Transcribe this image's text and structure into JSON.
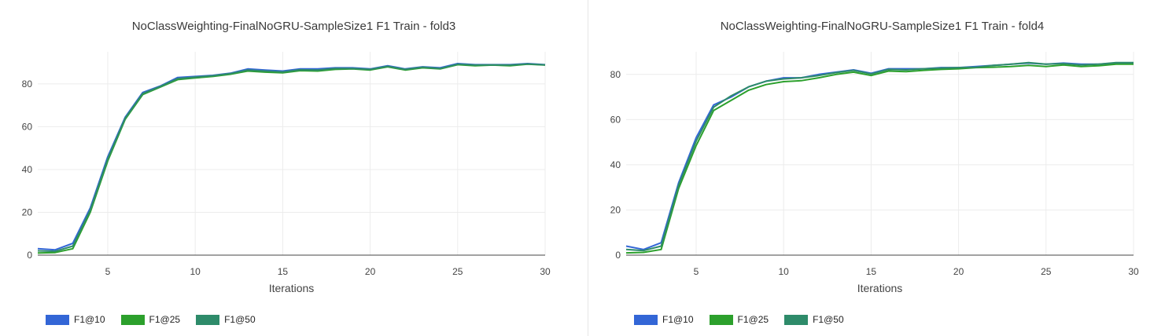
{
  "chart_data": [
    {
      "type": "line",
      "title": "NoClassWeighting-FinalNoGRU-SampleSize1 F1 Train - fold3",
      "xlabel": "Iterations",
      "ylabel": "",
      "xlim": [
        1,
        30
      ],
      "ylim": [
        0,
        95
      ],
      "xticks": [
        5,
        10,
        15,
        20,
        25,
        30
      ],
      "yticks": [
        0,
        20,
        40,
        60,
        80
      ],
      "grid": true,
      "legend": "bottom-left",
      "x": [
        1,
        2,
        3,
        4,
        5,
        6,
        7,
        8,
        9,
        10,
        11,
        12,
        13,
        14,
        15,
        16,
        17,
        18,
        19,
        20,
        21,
        22,
        23,
        24,
        25,
        26,
        27,
        28,
        29,
        30
      ],
      "series": [
        {
          "name": "F1@10",
          "color": "#3366d6",
          "values": [
            3.0,
            2.5,
            5.5,
            22.0,
            46.0,
            64.5,
            76.0,
            79.0,
            83.0,
            83.5,
            84.0,
            85.0,
            87.0,
            86.5,
            86.0,
            87.0,
            87.0,
            87.5,
            87.5,
            87.0,
            88.5,
            87.0,
            88.0,
            87.5,
            89.5,
            89.0,
            89.0,
            89.0,
            89.5,
            89.0
          ]
        },
        {
          "name": "F1@25",
          "color": "#2ca02c",
          "values": [
            1.0,
            1.2,
            3.0,
            20.0,
            44.0,
            63.5,
            75.0,
            78.5,
            82.0,
            82.8,
            83.5,
            84.5,
            86.0,
            85.5,
            85.2,
            86.2,
            86.0,
            86.8,
            87.0,
            86.5,
            88.0,
            86.5,
            87.5,
            87.0,
            89.0,
            88.5,
            88.8,
            88.5,
            89.2,
            88.8
          ]
        },
        {
          "name": "F1@50",
          "color": "#2e8b6a",
          "values": [
            2.0,
            1.8,
            4.2,
            21.0,
            45.0,
            64.0,
            75.5,
            78.8,
            82.5,
            83.2,
            83.8,
            84.8,
            86.5,
            86.0,
            85.6,
            86.6,
            86.5,
            87.2,
            87.2,
            86.8,
            88.2,
            86.8,
            87.8,
            87.2,
            89.2,
            88.8,
            88.9,
            88.8,
            89.3,
            88.9
          ]
        }
      ]
    },
    {
      "type": "line",
      "title": "NoClassWeighting-FinalNoGRU-SampleSize1 F1 Train - fold4",
      "xlabel": "Iterations",
      "ylabel": "",
      "xlim": [
        1,
        30
      ],
      "ylim": [
        0,
        90
      ],
      "xticks": [
        5,
        10,
        15,
        20,
        25,
        30
      ],
      "yticks": [
        0,
        20,
        40,
        60,
        80
      ],
      "grid": true,
      "legend": "bottom-left",
      "x": [
        1,
        2,
        3,
        4,
        5,
        6,
        7,
        8,
        9,
        10,
        11,
        12,
        13,
        14,
        15,
        16,
        17,
        18,
        19,
        20,
        21,
        22,
        23,
        24,
        25,
        26,
        27,
        28,
        29,
        30
      ],
      "series": [
        {
          "name": "F1@10",
          "color": "#3366d6",
          "values": [
            4.0,
            2.5,
            5.5,
            32.0,
            52.0,
            66.5,
            70.0,
            74.5,
            77.0,
            78.5,
            78.5,
            80.0,
            81.0,
            82.0,
            80.5,
            82.5,
            82.5,
            82.5,
            83.0,
            83.0,
            83.5,
            84.0,
            84.5,
            85.0,
            84.5,
            85.0,
            84.5,
            84.5,
            85.0,
            85.0
          ]
        },
        {
          "name": "F1@25",
          "color": "#2ca02c",
          "values": [
            1.0,
            1.2,
            2.5,
            29.5,
            48.5,
            64.0,
            68.5,
            73.0,
            75.5,
            76.8,
            77.2,
            78.5,
            80.0,
            81.0,
            79.5,
            81.5,
            81.2,
            81.8,
            82.2,
            82.5,
            83.0,
            83.2,
            83.5,
            84.0,
            83.5,
            84.2,
            83.5,
            83.8,
            84.5,
            84.5
          ]
        },
        {
          "name": "F1@50",
          "color": "#2e8b6a",
          "values": [
            2.5,
            2.0,
            4.0,
            31.0,
            50.5,
            65.5,
            70.5,
            74.5,
            77.0,
            78.0,
            78.5,
            79.5,
            80.8,
            81.8,
            80.2,
            82.2,
            82.0,
            82.5,
            82.8,
            83.0,
            83.2,
            84.0,
            84.5,
            85.2,
            84.5,
            84.8,
            84.2,
            84.5,
            85.2,
            85.2
          ]
        }
      ]
    }
  ]
}
